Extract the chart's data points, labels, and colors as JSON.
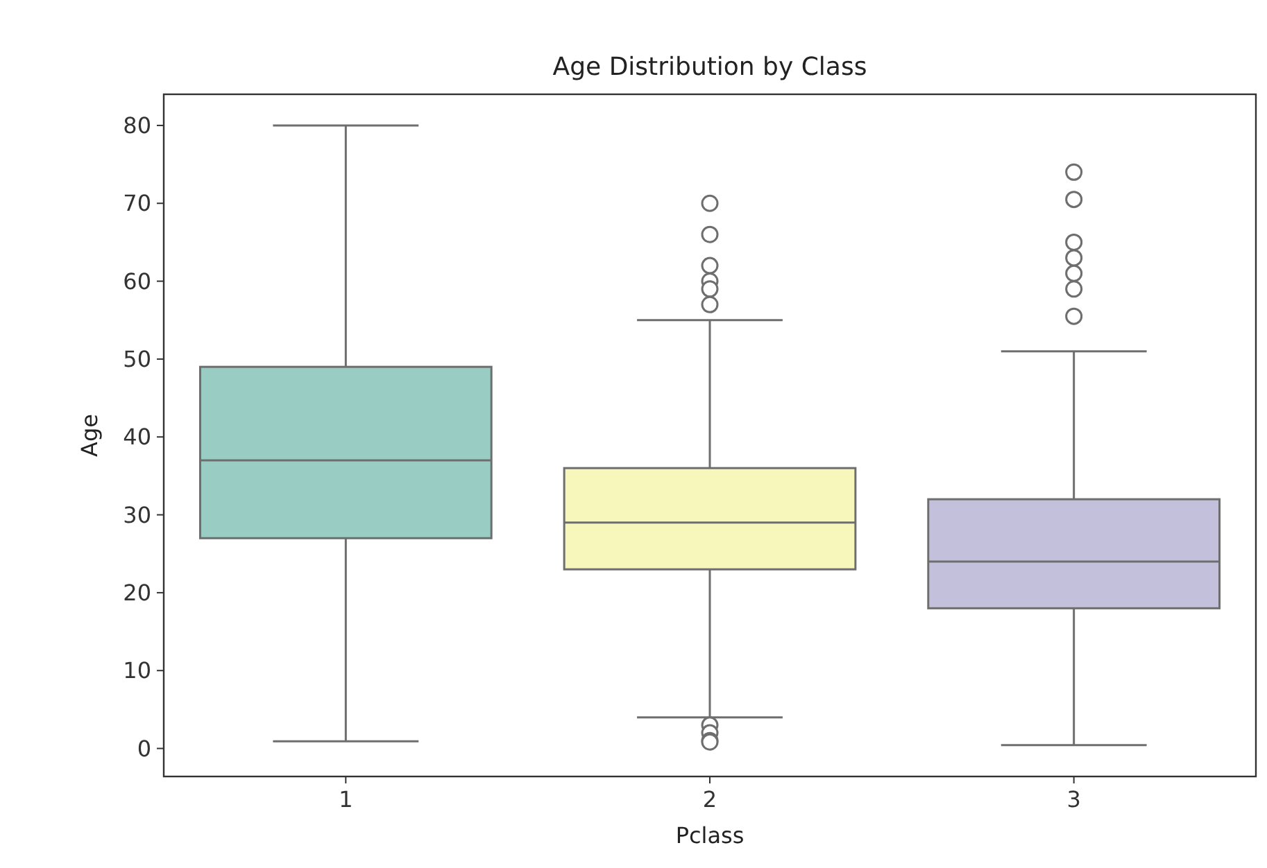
{
  "chart_data": {
    "type": "box",
    "title": "Age Distribution by Class",
    "xlabel": "Pclass",
    "ylabel": "Age",
    "categories": [
      "1",
      "2",
      "3"
    ],
    "colors": [
      "#99ccc3",
      "#f7f7bb",
      "#c3c0dc"
    ],
    "boxes": [
      {
        "low": 0.92,
        "q1": 27,
        "median": 37,
        "q3": 49,
        "high": 80
      },
      {
        "low": 4,
        "q1": 23,
        "median": 29,
        "q3": 36,
        "high": 55,
        "outliers": [
          70,
          66,
          62,
          60,
          59,
          57,
          3,
          2,
          1,
          0.83
        ]
      },
      {
        "low": 0.42,
        "q1": 18,
        "median": 24,
        "q3": 32,
        "high": 51,
        "outliers": [
          74,
          70.5,
          65,
          63,
          61,
          59,
          55.5
        ]
      }
    ],
    "ylim": [
      -3.6,
      84
    ],
    "yticks": [
      0,
      10,
      20,
      30,
      40,
      50,
      60,
      70,
      80
    ],
    "grid": false
  }
}
